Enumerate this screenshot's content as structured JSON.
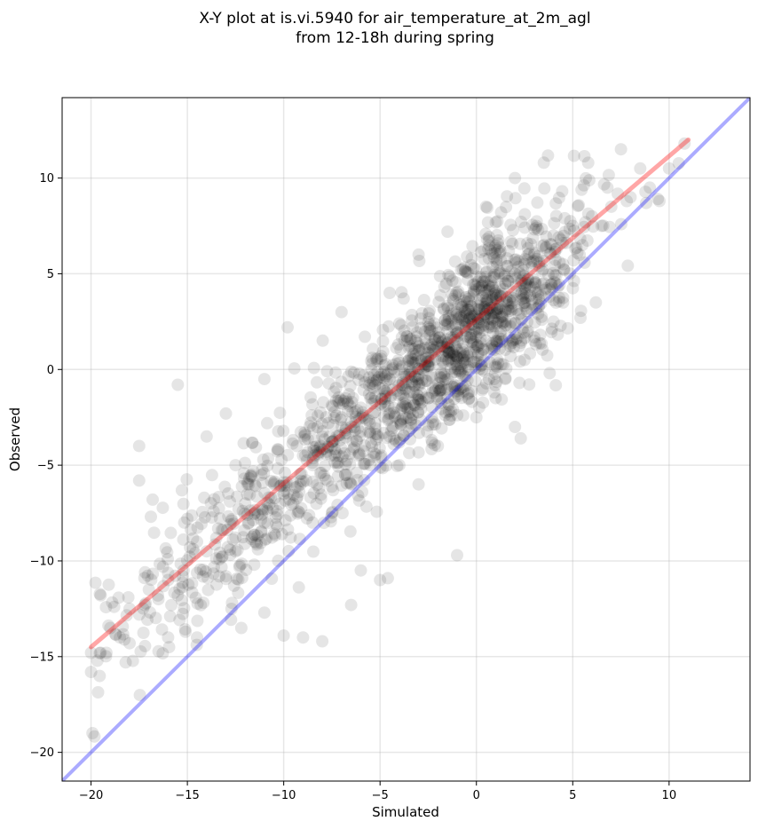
{
  "chart_data": {
    "type": "scatter",
    "title": [
      "X-Y plot at is.vi.5940 for air_temperature_at_2m_agl",
      "from 12-18h during spring"
    ],
    "xlabel": "Simulated",
    "ylabel": "Observed",
    "xlim": [
      -21.5,
      14.2
    ],
    "ylim": [
      -21.5,
      14.2
    ],
    "xticks": [
      -20,
      -15,
      -10,
      -5,
      0,
      5,
      10
    ],
    "yticks": [
      -20,
      -15,
      -10,
      -5,
      0,
      5,
      10
    ],
    "xtick_labels": [
      "−20",
      "−15",
      "−10",
      "−5",
      "0",
      "5",
      "10"
    ],
    "ytick_labels": [
      "−20",
      "−15",
      "−10",
      "−5",
      "0",
      "5",
      "10"
    ],
    "grid": true,
    "point_color": "#000000",
    "point_alpha": 0.1,
    "sample_points": [
      [
        -20,
        -15.8
      ],
      [
        -19.5,
        -14.8
      ],
      [
        -19,
        -13.5
      ],
      [
        -18.5,
        -14
      ],
      [
        -18,
        -12.5
      ],
      [
        -18.2,
        -15.3
      ],
      [
        -17.5,
        -12.8
      ],
      [
        -17,
        -11.5
      ],
      [
        -16.5,
        -12
      ],
      [
        -16,
        -11
      ],
      [
        -15.5,
        -11.8
      ],
      [
        -15.2,
        -10.5
      ],
      [
        -15,
        -7.8
      ],
      [
        -14.5,
        -9
      ],
      [
        -14,
        -9.5
      ],
      [
        -13.5,
        -8.8
      ],
      [
        -13,
        -10.8
      ],
      [
        -12.5,
        -9.5
      ],
      [
        -12,
        -7
      ],
      [
        -11.5,
        -9
      ],
      [
        -11,
        -8
      ],
      [
        -10.5,
        -6
      ],
      [
        -10,
        -6.5
      ],
      [
        -9.5,
        -7
      ],
      [
        -9,
        -4.5
      ],
      [
        -8.5,
        -5
      ],
      [
        -8,
        -3.5
      ],
      [
        -7.5,
        -4
      ],
      [
        -7,
        -2.5
      ],
      [
        -6.5,
        -3
      ],
      [
        -6,
        -2
      ],
      [
        -5.5,
        -1.5
      ],
      [
        -5,
        -1
      ],
      [
        -4.5,
        -0.5
      ],
      [
        -4,
        0
      ],
      [
        -3.5,
        0.5
      ],
      [
        -3,
        1
      ],
      [
        -2.5,
        0.2
      ],
      [
        -2,
        1.5
      ],
      [
        -1.5,
        2
      ],
      [
        -1,
        1
      ],
      [
        -0.5,
        2.5
      ],
      [
        0,
        2.8
      ],
      [
        0.5,
        3.5
      ],
      [
        1,
        4
      ],
      [
        1.5,
        4.5
      ],
      [
        2,
        5
      ],
      [
        2.5,
        5.5
      ],
      [
        3,
        6
      ],
      [
        3.5,
        6.5
      ],
      [
        4,
        7
      ],
      [
        5,
        7.5
      ],
      [
        6,
        8
      ],
      [
        7,
        8.5
      ],
      [
        8,
        9
      ],
      [
        9,
        9.5
      ],
      [
        10,
        10.5
      ],
      [
        10.8,
        11.8
      ],
      [
        -17.5,
        -4
      ],
      [
        -15.5,
        -0.8
      ],
      [
        -9.8,
        2.2
      ],
      [
        -13,
        -2.3
      ],
      [
        -11,
        -0.5
      ],
      [
        -7,
        3
      ],
      [
        -4.5,
        4
      ],
      [
        -3,
        6
      ],
      [
        -1.5,
        7.2
      ],
      [
        0.5,
        8.5
      ],
      [
        2,
        10
      ],
      [
        3.5,
        10.8
      ],
      [
        -9,
        -14
      ],
      [
        -8,
        -14.2
      ],
      [
        -10,
        -13.9
      ],
      [
        -6.5,
        -12.3
      ],
      [
        -5,
        -11
      ],
      [
        -4.6,
        -10.9
      ],
      [
        -1,
        -9.7
      ],
      [
        -6,
        -10.5
      ],
      [
        2,
        -3
      ],
      [
        2.3,
        -3.6
      ],
      [
        5.4,
        2.7
      ],
      [
        6.2,
        3.5
      ],
      [
        -12.2,
        -13.5
      ],
      [
        -11,
        -12.7
      ],
      [
        -14.5,
        -14
      ],
      [
        -16,
        -14
      ],
      [
        -19.5,
        -11.8
      ],
      [
        -18.8,
        -12.4
      ],
      [
        -14,
        -3.5
      ],
      [
        -12.5,
        -5
      ],
      [
        -16.8,
        -6.8
      ],
      [
        -17.5,
        -5.8
      ],
      [
        -20,
        -14.8
      ],
      [
        -19.2,
        -14.8
      ],
      [
        -18,
        -14.3
      ],
      [
        -4,
        -5
      ],
      [
        -3,
        -6
      ],
      [
        -2,
        -4
      ],
      [
        0,
        -2.5
      ],
      [
        1,
        -1.5
      ],
      [
        1.5,
        -0.5
      ],
      [
        2.5,
        0.5
      ],
      [
        3,
        1.5
      ],
      [
        4,
        2.5
      ],
      [
        4.5,
        3.5
      ],
      [
        -8.5,
        -8
      ],
      [
        -7.5,
        -7.5
      ],
      [
        -6.5,
        -6
      ],
      [
        -5.5,
        -5
      ],
      [
        -4.5,
        -3.5
      ],
      [
        -3.5,
        -2.5
      ],
      [
        -2.5,
        -1.5
      ],
      [
        -1.5,
        -0.5
      ],
      [
        -0.5,
        0.5
      ],
      [
        0.5,
        1.5
      ],
      [
        1.5,
        2.5
      ],
      [
        2.5,
        3.5
      ],
      [
        3.5,
        4.5
      ],
      [
        4.5,
        5.5
      ],
      [
        5.5,
        6.5
      ],
      [
        6.5,
        7.5
      ],
      [
        7.5,
        11.5
      ],
      [
        8.5,
        10.5
      ],
      [
        9.5,
        8.8
      ],
      [
        7.8,
        8.8
      ],
      [
        6.8,
        9.5
      ]
    ],
    "fit_line": {
      "color": "#ff0000",
      "alpha": 0.35,
      "x": [
        -20,
        11
      ],
      "y": [
        -14.5,
        12
      ]
    },
    "identity_line": {
      "color": "#0000ff",
      "alpha": 0.33
    }
  }
}
